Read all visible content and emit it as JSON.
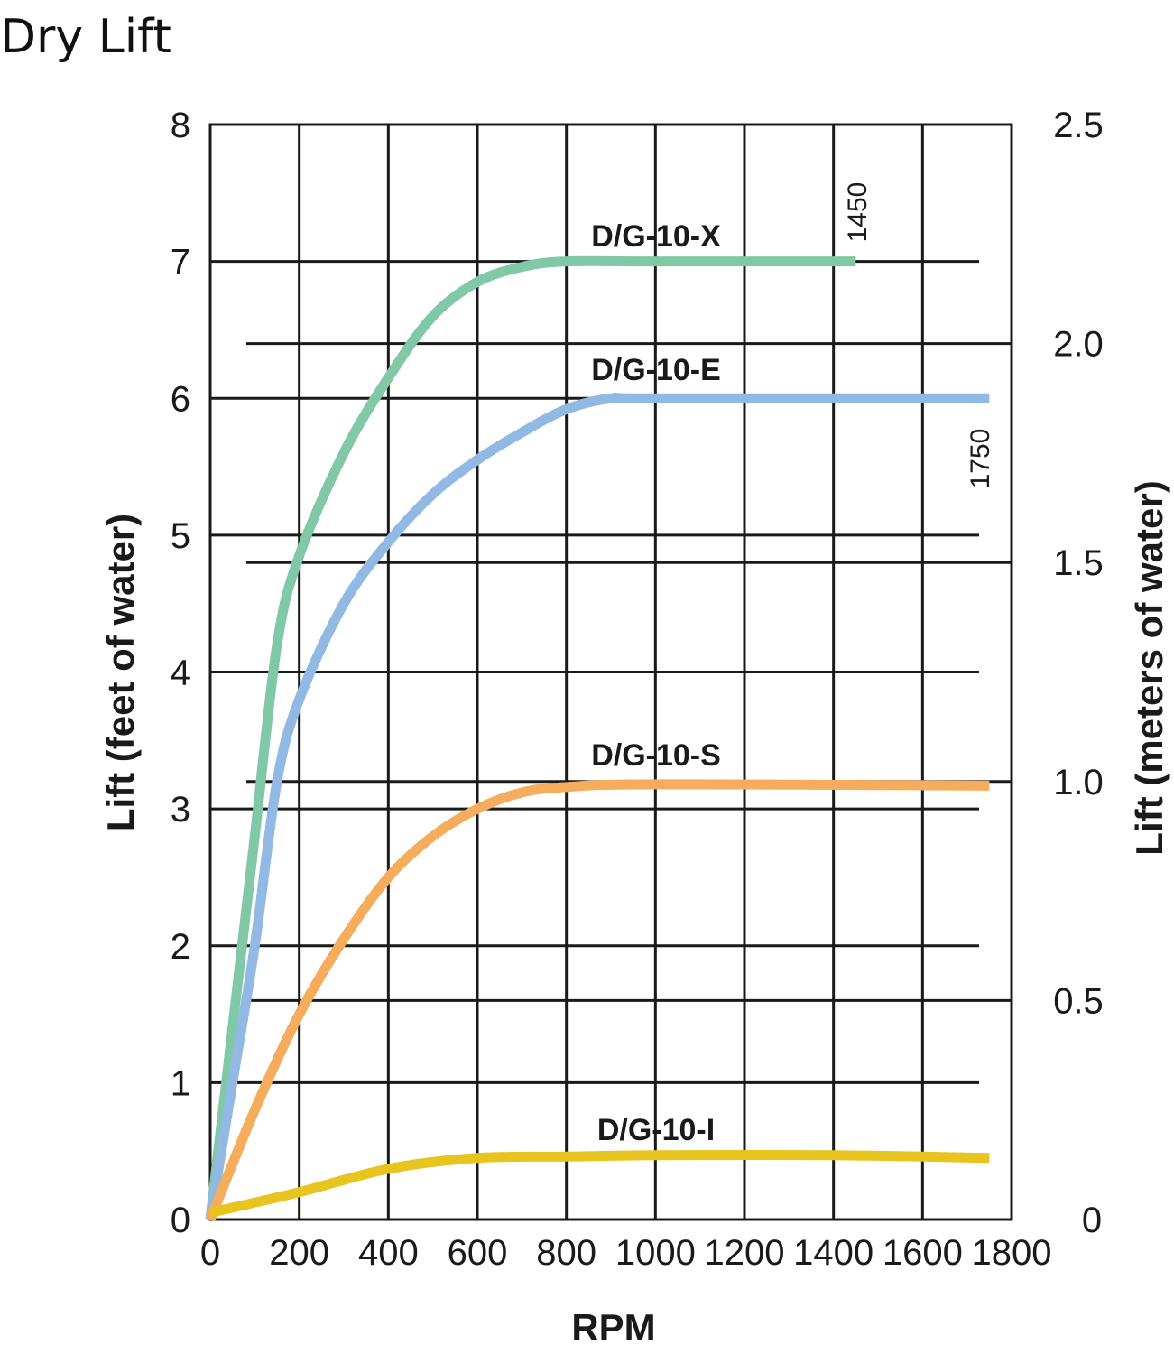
{
  "title": "Dry Lift",
  "chart_data": {
    "type": "line",
    "title": "Dry Lift",
    "xlabel": "RPM",
    "ylabel": "Lift (feet of water)",
    "ylabel_right": "Lift (meters of water)",
    "xlim": [
      0,
      1800
    ],
    "ylim": [
      0,
      8
    ],
    "ylim_right": [
      0,
      2.5
    ],
    "xticks": [
      "0",
      "200",
      "400",
      "600",
      "800",
      "1000",
      "1200",
      "1400",
      "1600",
      "1800"
    ],
    "yticks": [
      "0",
      "1",
      "2",
      "3",
      "4",
      "5",
      "6",
      "7",
      "8"
    ],
    "yticks_right": [
      "0",
      "0.5",
      "1.0",
      "1.5",
      "2.0",
      "2.5"
    ],
    "grid": true,
    "series": [
      {
        "name": "D/G-10-X",
        "color": "#80c8a6",
        "x": [
          0,
          50,
          100,
          150,
          200,
          300,
          400,
          500,
          600,
          700,
          800,
          1000,
          1450
        ],
        "y": [
          0,
          1.4,
          2.8,
          4.2,
          4.85,
          5.6,
          6.15,
          6.6,
          6.85,
          6.96,
          7.0,
          7.0,
          7.0
        ]
      },
      {
        "name": "D/G-10-E",
        "color": "#92b9e3",
        "x": [
          0,
          50,
          100,
          150,
          200,
          300,
          400,
          500,
          600,
          700,
          800,
          900,
          1000,
          1750
        ],
        "y": [
          0,
          1.0,
          2.0,
          3.2,
          3.8,
          4.5,
          4.95,
          5.3,
          5.55,
          5.75,
          5.92,
          6.0,
          6.0,
          6.0
        ]
      },
      {
        "name": "D/G-10-S",
        "color": "#f5ac5c",
        "x": [
          0,
          100,
          200,
          300,
          400,
          500,
          600,
          700,
          800,
          1000,
          1750
        ],
        "y": [
          0,
          0.8,
          1.5,
          2.05,
          2.5,
          2.8,
          3.0,
          3.12,
          3.16,
          3.18,
          3.17
        ]
      },
      {
        "name": "D/G-10-I",
        "color": "#e8c51e",
        "x": [
          0,
          200,
          400,
          600,
          800,
          1000,
          1400,
          1750
        ],
        "y": [
          0.05,
          0.2,
          0.37,
          0.45,
          0.46,
          0.47,
          0.47,
          0.45
        ]
      }
    ],
    "annotations": [
      "1450",
      "1750"
    ]
  }
}
